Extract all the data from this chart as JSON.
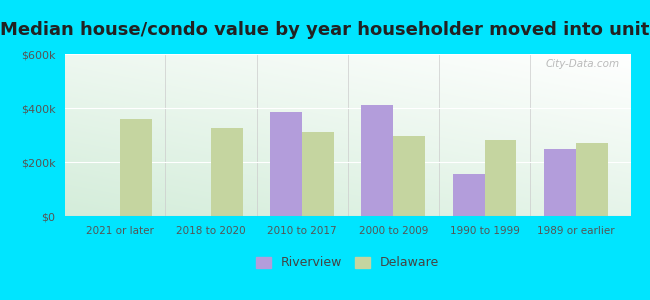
{
  "title": "Median house/condo value by year householder moved into unit",
  "categories": [
    "2021 or later",
    "2018 to 2020",
    "2010 to 2017",
    "2000 to 2009",
    "1990 to 1999",
    "1989 or earlier"
  ],
  "riverview": [
    null,
    null,
    385000,
    410000,
    155000,
    250000
  ],
  "delaware": [
    360000,
    325000,
    310000,
    295000,
    280000,
    270000
  ],
  "riverview_color": "#b39ddb",
  "delaware_color": "#c5d5a0",
  "outer_background": "#00e5ff",
  "ylim": [
    0,
    600000
  ],
  "yticks": [
    0,
    200000,
    400000,
    600000
  ],
  "bar_width": 0.35,
  "legend_riverview": "Riverview",
  "legend_delaware": "Delaware",
  "title_fontsize": 13,
  "watermark": "City-Data.com"
}
